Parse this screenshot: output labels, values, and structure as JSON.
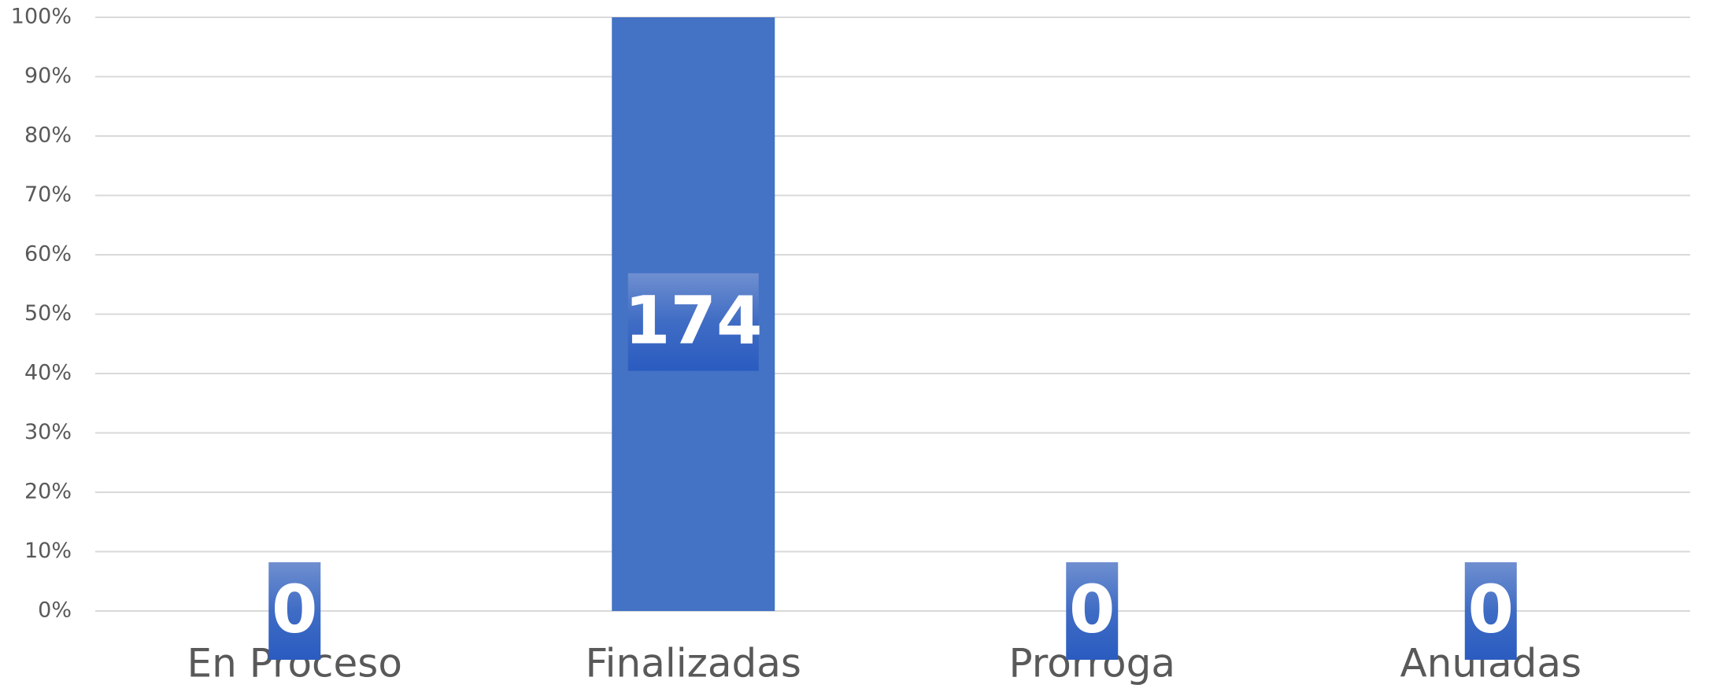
{
  "chart_data": {
    "type": "bar",
    "categories": [
      "En Proceso",
      "Finalizadas",
      "Prorroga",
      "Anuladas"
    ],
    "values": [
      0,
      100,
      0,
      0
    ],
    "data_labels": [
      0,
      174,
      0,
      0
    ],
    "color": "#4472c4",
    "ylim": [
      0,
      100
    ],
    "yticks": [
      {
        "value": 0,
        "label": "0%"
      },
      {
        "value": 10,
        "label": "10%"
      },
      {
        "value": 20,
        "label": "20%"
      },
      {
        "value": 30,
        "label": "30%"
      },
      {
        "value": 40,
        "label": "40%"
      },
      {
        "value": 50,
        "label": "50%"
      },
      {
        "value": 60,
        "label": "60%"
      },
      {
        "value": 70,
        "label": "70%"
      },
      {
        "value": 80,
        "label": "80%"
      },
      {
        "value": 90,
        "label": "90%"
      },
      {
        "value": 100,
        "label": "100%"
      }
    ],
    "grid": true
  }
}
